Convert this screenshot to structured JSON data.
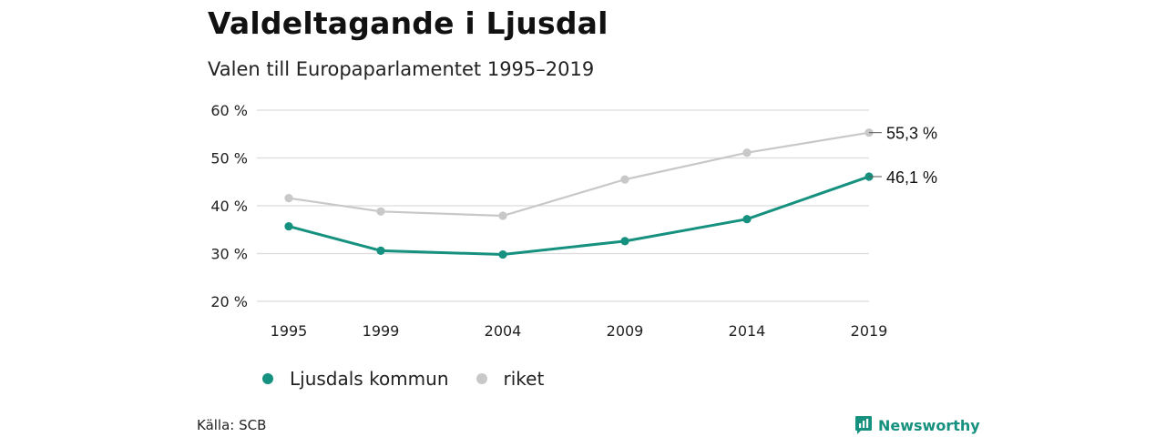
{
  "chart_data": {
    "type": "line",
    "title": "Valdeltagande i Ljusdal",
    "subtitle": "Valen till Europaparlamentet 1995–2019",
    "categories": [
      "1995",
      "1999",
      "2004",
      "2009",
      "2014",
      "2019"
    ],
    "y_ticks": [
      "20 %",
      "30 %",
      "40 %",
      "50 %",
      "60 %"
    ],
    "ylim": [
      20,
      60
    ],
    "grid": true,
    "legend_position": "bottom",
    "series": [
      {
        "name": "Ljusdals kommun",
        "values": [
          35.7,
          30.6,
          29.8,
          32.6,
          37.2,
          46.1
        ],
        "color": "#16917f",
        "end_label": "46,1 %"
      },
      {
        "name": "riket",
        "values": [
          41.6,
          38.8,
          37.9,
          45.5,
          51.1,
          55.3
        ],
        "color": "#c8c8c8",
        "end_label": "55,3 %"
      }
    ]
  },
  "source": "Källa: SCB",
  "brand": {
    "name": "Newsworthy",
    "color": "#16917f",
    "icon": "bar-chart-logo-icon"
  }
}
